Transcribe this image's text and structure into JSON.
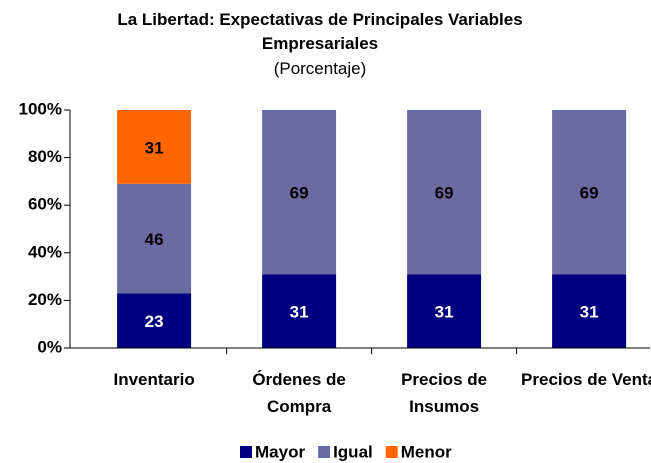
{
  "chart_data": {
    "type": "bar",
    "stacked": true,
    "title": "La Libertad: Expectativas de Principales Variables Empresariales",
    "subtitle": "(Porcentaje)",
    "categories": [
      "Inventario",
      "Órdenes de Compra",
      "Precios de Insumos",
      "Precios de Venta"
    ],
    "series": [
      {
        "name": "Mayor",
        "color": "#000080",
        "values": [
          23,
          31,
          31,
          31
        ]
      },
      {
        "name": "Igual",
        "color": "#6b6ba3",
        "values": [
          46,
          69,
          69,
          69
        ]
      },
      {
        "name": "Menor",
        "color": "#ff6600",
        "values": [
          31,
          null,
          null,
          null
        ]
      }
    ],
    "ylim": [
      0,
      100
    ],
    "yticks": [
      {
        "value": 0,
        "label": "0%"
      },
      {
        "value": 20,
        "label": "20%"
      },
      {
        "value": 40,
        "label": "40%"
      },
      {
        "value": 60,
        "label": "60%"
      },
      {
        "value": 80,
        "label": "80%"
      },
      {
        "value": 100,
        "label": "100%"
      }
    ],
    "legend": "bottom"
  }
}
